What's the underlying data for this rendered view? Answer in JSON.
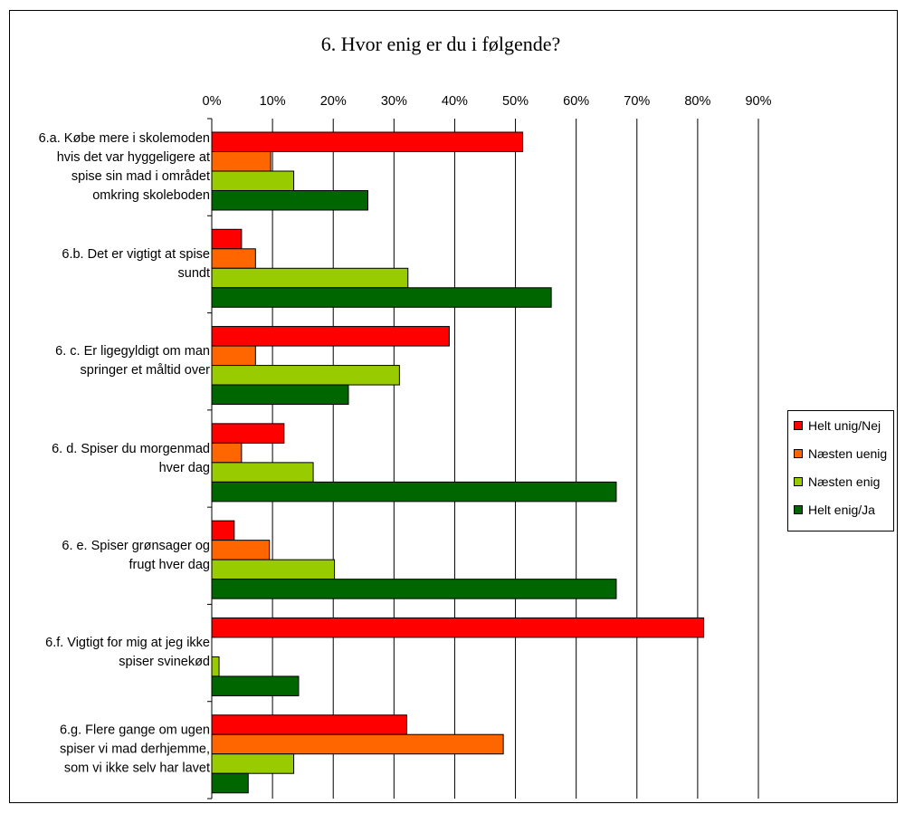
{
  "chart_data": {
    "type": "bar",
    "orientation": "horizontal",
    "title": "6. Hvor enig er du i følgende?",
    "xlim": [
      0,
      90
    ],
    "x_ticks": [
      "0%",
      "10%",
      "20%",
      "30%",
      "40%",
      "50%",
      "60%",
      "70%",
      "80%",
      "90%"
    ],
    "tick_values": [
      0,
      10,
      20,
      30,
      40,
      50,
      60,
      70,
      80,
      90
    ],
    "grid": true,
    "legend_position": "right",
    "categories": [
      "6.a. Købe mere i skolemoden hvis det var hyggeligere at spise sin mad i området omkring skoleboden",
      "6.b. Det er vigtigt at spise sundt",
      "6. c. Er ligegyldigt om man springer et måltid over",
      "6. d. Spiser du morgenmad hver dag",
      "6. e. Spiser grønsager og frugt hver dag",
      "6.f. Vigtigt for mig at jeg ikke spiser svinekød",
      "6.g.  Flere gange om ugen spiser vi mad derhjemme, som vi ikke selv har lavet"
    ],
    "category_lines": [
      [
        "6.a. Købe mere i skolemoden",
        "hvis det var hyggeligere at",
        "spise sin mad i området",
        "omkring skoleboden"
      ],
      [
        "6.b. Det er vigtigt at spise",
        "sundt"
      ],
      [
        "6. c. Er ligegyldigt om man",
        "springer et måltid over"
      ],
      [
        "6. d. Spiser du morgenmad",
        "hver dag"
      ],
      [
        "6. e. Spiser grønsager og",
        "frugt hver dag"
      ],
      [
        "6.f. Vigtigt for mig at jeg ikke",
        "spiser svinekød"
      ],
      [
        "6.g.  Flere gange om ugen",
        "spiser vi mad derhjemme,",
        "som vi ikke selv har lavet"
      ]
    ],
    "series": [
      {
        "name": "Helt unig/Nej",
        "color": "#ff0000",
        "values": [
          51.2,
          4.9,
          39.1,
          11.9,
          3.7,
          81.0,
          32.1
        ]
      },
      {
        "name": "Næsten uenig",
        "color": "#ff6600",
        "values": [
          9.7,
          7.2,
          7.2,
          4.9,
          9.5,
          0,
          48.0
        ]
      },
      {
        "name": "Næsten enig",
        "color": "#99cc00",
        "values": [
          13.5,
          32.3,
          30.9,
          16.7,
          20.2,
          1.2,
          13.5
        ]
      },
      {
        "name": "Helt enig/Ja",
        "color": "#006600",
        "values": [
          25.7,
          55.9,
          22.5,
          66.6,
          66.6,
          14.3,
          6.0
        ]
      }
    ]
  }
}
